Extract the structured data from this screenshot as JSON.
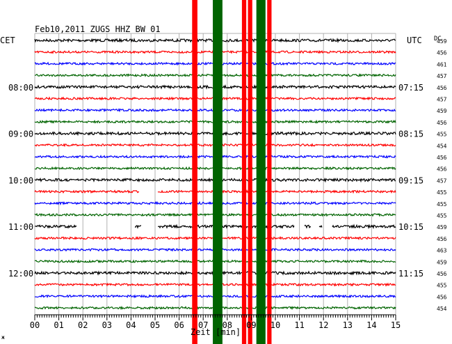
{
  "chart_data": {
    "type": "line",
    "title": "Feb10,2011   ZUGS HHZ BW 01",
    "left_tz": "CET",
    "right_tz": "UTC",
    "dc_header": "DC",
    "xlabel": "Zeit [min]",
    "corner_mark": "ж",
    "x_ticks": [
      "00",
      "01",
      "02",
      "03",
      "04",
      "05",
      "06",
      "07",
      "08",
      "09",
      "10",
      "11",
      "12",
      "13",
      "14",
      "15"
    ],
    "xlim": [
      0,
      15
    ],
    "trace_count": 24,
    "trace_colors": [
      "#000000",
      "#ff0000",
      "#0000ff",
      "#006400"
    ],
    "left_time_labels": [
      {
        "trace": 4,
        "label": "08:00"
      },
      {
        "trace": 8,
        "label": "09:00"
      },
      {
        "trace": 12,
        "label": "10:00"
      },
      {
        "trace": 16,
        "label": "11:00"
      },
      {
        "trace": 20,
        "label": "12:00"
      }
    ],
    "right_time_labels": [
      {
        "trace": 4,
        "label": "07:15"
      },
      {
        "trace": 8,
        "label": "08:15"
      },
      {
        "trace": 12,
        "label": "09:15"
      },
      {
        "trace": 16,
        "label": "10:15"
      },
      {
        "trace": 20,
        "label": "11:15"
      }
    ],
    "dc_offsets": [
      "459",
      "456",
      "461",
      "457",
      "456",
      "457",
      "459",
      "456",
      "455",
      "454",
      "456",
      "456",
      "457",
      "455",
      "455",
      "455",
      "459",
      "456",
      "463",
      "459",
      "456",
      "455",
      "456",
      "454"
    ],
    "gaps": [
      {
        "trace": 13,
        "from_min": 4.35,
        "to_min": 5.1
      },
      {
        "trace": 16,
        "from_min": 1.75,
        "to_min": 4.15
      },
      {
        "trace": 16,
        "from_min": 4.45,
        "to_min": 5.1
      },
      {
        "trace": 16,
        "from_min": 10.8,
        "to_min": 11.2
      },
      {
        "trace": 16,
        "from_min": 11.5,
        "to_min": 11.8
      },
      {
        "trace": 16,
        "from_min": 11.95,
        "to_min": 12.35
      }
    ],
    "events": [
      {
        "minute": 6.65,
        "color": "#ff0000",
        "full_height": true,
        "width_min": 0.22
      },
      {
        "minute": 7.6,
        "color": "#006400",
        "full_height": true,
        "width_min": 0.4
      },
      {
        "minute": 8.7,
        "color": "#ff0000",
        "full_height": true,
        "width_min": 0.18
      },
      {
        "minute": 8.95,
        "color": "#ff0000",
        "full_height": true,
        "width_min": 0.18
      },
      {
        "minute": 9.4,
        "color": "#006400",
        "full_height": true,
        "width_min": 0.38
      },
      {
        "minute": 9.75,
        "color": "#ff0000",
        "full_height": true,
        "width_min": 0.18
      }
    ]
  }
}
